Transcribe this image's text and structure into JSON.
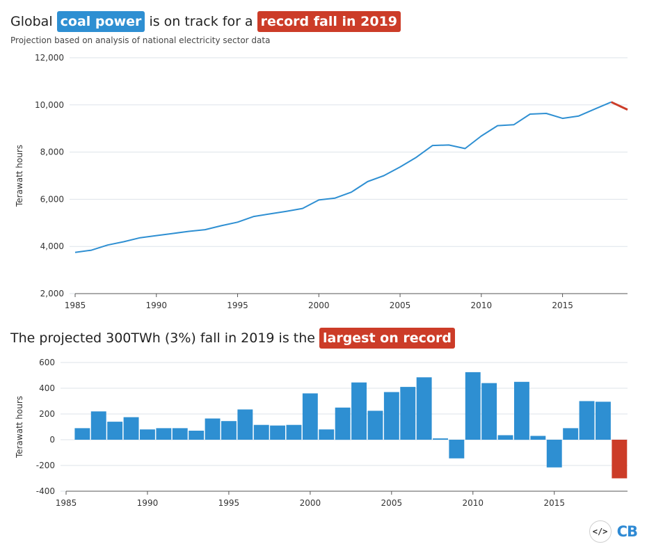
{
  "title1": {
    "pre": "Global",
    "hl1": "coal power",
    "mid": "is on track for a",
    "hl2": "record fall in 2019"
  },
  "subtitle": "Projection based on analysis of national electricity sector data",
  "title2": {
    "pre": "The projected 300TWh (3%) fall in 2019 is the",
    "hl": "largest on record"
  },
  "footer": {
    "embed_label": "</>",
    "logo": "CB"
  },
  "colors": {
    "blue": "#2e8fd2",
    "red": "#cc3c28",
    "grid": "#dde3ea",
    "axis": "#555"
  },
  "chart_data": [
    {
      "type": "line",
      "ylabel": "Terawatt hours",
      "ylim": [
        2000,
        12000
      ],
      "yticks": [
        2000,
        4000,
        6000,
        8000,
        10000,
        12000
      ],
      "ytick_labels": [
        "2,000",
        "4,000",
        "6,000",
        "8,000",
        "10,000",
        "12,000"
      ],
      "xlim": [
        1985,
        2019
      ],
      "xticks": [
        1985,
        1990,
        1995,
        2000,
        2005,
        2010,
        2015
      ],
      "xtick_labels": [
        "1985",
        "1990",
        "1995",
        "2000",
        "2005",
        "2010",
        "2015"
      ],
      "series": [
        {
          "color": "#2e8fd2",
          "x": [
            1985,
            1986,
            1987,
            1988,
            1989,
            1990,
            1991,
            1992,
            1993,
            1994,
            1995,
            1996,
            1997,
            1998,
            1999,
            2000,
            2001,
            2002,
            2003,
            2004,
            2005,
            2006,
            2007,
            2008,
            2009,
            2010,
            2011,
            2012,
            2013,
            2014,
            2015,
            2016,
            2017,
            2018
          ],
          "y": [
            3750,
            3840,
            4060,
            4200,
            4370,
            4460,
            4550,
            4640,
            4710,
            4880,
            5030,
            5270,
            5380,
            5490,
            5610,
            5970,
            6050,
            6300,
            6750,
            7000,
            7370,
            7780,
            8280,
            8300,
            8150,
            8680,
            9120,
            9160,
            9610,
            9640,
            9430,
            9530,
            9830,
            10120
          ]
        },
        {
          "color": "#cc3c28",
          "x": [
            2018,
            2019
          ],
          "y": [
            10120,
            9800
          ]
        }
      ]
    },
    {
      "type": "bar",
      "ylabel": "Terawatt hours",
      "ylim": [
        -400,
        600
      ],
      "yticks": [
        -400,
        -200,
        0,
        200,
        400,
        600
      ],
      "ytick_labels": [
        "-400",
        "-200",
        "0",
        "200",
        "400",
        "600"
      ],
      "xlim": [
        1985,
        2019.5
      ],
      "xticks": [
        1985,
        1990,
        1995,
        2000,
        2005,
        2010,
        2015
      ],
      "xtick_labels": [
        "1985",
        "1990",
        "1995",
        "2000",
        "2005",
        "2010",
        "2015"
      ],
      "x": [
        1986,
        1987,
        1988,
        1989,
        1990,
        1991,
        1992,
        1993,
        1994,
        1995,
        1996,
        1997,
        1998,
        1999,
        2000,
        2001,
        2002,
        2003,
        2004,
        2005,
        2006,
        2007,
        2008,
        2009,
        2010,
        2011,
        2012,
        2013,
        2014,
        2015,
        2016,
        2017,
        2018,
        2019
      ],
      "values": [
        90,
        220,
        140,
        175,
        80,
        90,
        90,
        70,
        165,
        145,
        235,
        115,
        110,
        115,
        360,
        80,
        250,
        445,
        225,
        370,
        410,
        485,
        10,
        -145,
        525,
        440,
        35,
        450,
        30,
        -215,
        90,
        300,
        295,
        -300
      ],
      "colors_by_index": {
        "33": "#cc3c28"
      }
    }
  ]
}
